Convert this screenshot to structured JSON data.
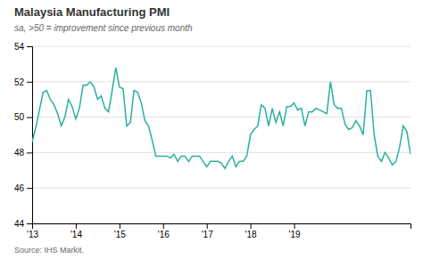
{
  "chart_data": {
    "type": "line",
    "title": "Malaysia Manufacturing PMI",
    "subtitle": "sa, >50 = improvement since previous month",
    "source": "Source: IHS Markit.",
    "color": "#2ab0a0",
    "grid": true,
    "ylim": [
      44,
      54
    ],
    "yticks": [
      44,
      46,
      48,
      50,
      52,
      54
    ],
    "categories": [
      "'13",
      null,
      null,
      null,
      null,
      null,
      null,
      null,
      null,
      null,
      null,
      null,
      "'14",
      null,
      null,
      null,
      null,
      null,
      null,
      null,
      null,
      null,
      null,
      null,
      "'15",
      null,
      null,
      null,
      null,
      null,
      null,
      null,
      null,
      null,
      null,
      null,
      "'16",
      null,
      null,
      null,
      null,
      null,
      null,
      null,
      null,
      null,
      null,
      null,
      "'17",
      null,
      null,
      null,
      null,
      null,
      null,
      null,
      null,
      null,
      null,
      null,
      "'18",
      null,
      null,
      null,
      null,
      null,
      null,
      null,
      null,
      null,
      null,
      null,
      "'19",
      null,
      null,
      null,
      null,
      null,
      null,
      null,
      null,
      null,
      null,
      null,
      null,
      null,
      null,
      null,
      null,
      null,
      null,
      null,
      null,
      null,
      null,
      null,
      null,
      null,
      null,
      null,
      null,
      null,
      null,
      null,
      null
    ],
    "values": [
      48.6,
      49.4,
      50.4,
      51.4,
      51.5,
      51.0,
      50.7,
      50.2,
      49.5,
      50.0,
      51.0,
      50.6,
      49.9,
      50.5,
      51.8,
      51.8,
      52.0,
      51.7,
      51.0,
      51.2,
      50.5,
      50.3,
      51.5,
      52.8,
      51.7,
      51.6,
      49.5,
      49.7,
      51.5,
      51.4,
      50.8,
      49.8,
      49.5,
      48.7,
      47.8,
      47.8,
      47.8,
      47.8,
      47.7,
      47.9,
      47.5,
      47.8,
      47.8,
      47.5,
      47.8,
      47.8,
      47.8,
      47.5,
      47.2,
      47.5,
      47.5,
      47.5,
      47.4,
      47.1,
      47.5,
      47.8,
      47.2,
      47.5,
      47.5,
      47.8,
      49.0,
      49.3,
      49.5,
      50.7,
      50.5,
      49.5,
      50.5,
      49.7,
      50.3,
      49.5,
      50.6,
      50.6,
      50.8,
      50.4,
      50.5,
      49.5,
      50.3,
      50.3,
      50.5,
      50.4,
      50.3,
      50.2,
      52.0,
      50.7,
      50.5,
      50.5,
      49.6,
      49.3,
      49.4,
      49.8,
      49.5,
      49.0,
      51.5,
      51.5,
      49.0,
      47.8,
      47.5,
      48.0,
      47.7,
      47.3,
      47.5,
      48.3,
      49.5,
      49.2,
      47.9
    ]
  }
}
